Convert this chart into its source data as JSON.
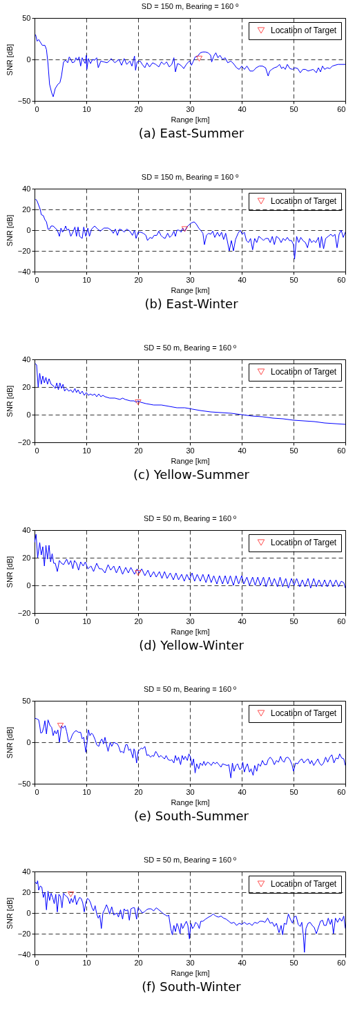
{
  "chart_data": [
    {
      "type": "line",
      "title": "SD = 150 m, Bearing = 160 º",
      "xlabel": "Range [km]",
      "ylabel": "SNR [dB]",
      "xlim": [
        0,
        60
      ],
      "xticks": [
        0,
        10,
        20,
        30,
        40,
        50,
        60
      ],
      "ylim": [
        -50,
        50
      ],
      "yticks": [
        -50,
        0,
        50
      ],
      "grid": true,
      "legend": "top right",
      "annotations": [
        "(a) East-Summer"
      ],
      "series": [
        {
          "type": "line",
          "color": "#0000ff",
          "marker": "none",
          "line_style": "solid",
          "x": [
            0.2,
            0.5,
            0.8,
            1.2,
            1.5,
            2,
            2.3,
            2.6,
            2.9,
            3.3,
            3.6,
            4,
            4.5,
            4.9,
            5.2,
            5.6,
            6,
            6.4,
            6.7,
            7,
            7.3,
            7.7,
            8,
            8.3,
            8.6,
            8.9,
            9.2,
            9.5,
            9.8,
            10,
            10.1,
            10.4,
            10.8,
            11.2,
            11.6,
            12,
            12.3,
            12.8,
            13.4,
            14,
            14.4,
            14.8,
            15.5,
            16.3,
            16.8,
            17.3,
            17.8,
            18.4,
            18.8,
            19.3,
            19.5,
            19.8,
            20.4,
            20.8,
            21.3,
            21.7,
            22.2,
            22.8,
            23.4,
            24,
            24.5,
            25,
            25.5,
            26,
            26.5,
            26.9,
            27.2,
            27.6,
            28,
            28.4,
            28.8,
            29.3,
            29.7,
            30,
            30.3,
            30.6,
            31,
            31.5,
            32,
            32.5,
            33,
            33.5,
            34,
            34.2,
            34.6,
            35,
            35.4,
            35.8,
            36.3,
            36.8,
            37.3,
            37.9,
            38.4,
            39,
            39.5,
            40,
            40.5,
            41,
            41.6,
            42.2,
            42.8,
            43.4,
            44,
            44.6,
            45.1,
            45.4,
            45.8,
            46.3,
            46.8,
            47.3,
            47.7,
            48,
            48.4,
            48.8,
            49.3,
            49.8,
            50.3,
            50.8,
            51.3,
            51.8,
            52.3,
            52.8,
            53.3,
            53.8,
            54.4,
            54.8,
            55.2,
            55.6,
            56,
            56.5,
            57,
            57.5,
            58,
            58.6,
            59.2,
            60
          ],
          "values": [
            30,
            22,
            24,
            20,
            17,
            17,
            12,
            -5,
            -30,
            -40,
            -45,
            -35,
            -30,
            -28,
            -20,
            -3,
            -1,
            -4,
            3,
            0,
            -4,
            -3,
            2,
            -1,
            3,
            -8,
            2,
            -2,
            -5,
            5,
            -12,
            1,
            -5,
            0,
            -1,
            2,
            -10,
            -2,
            -3,
            -4,
            -2,
            1,
            -4,
            0,
            -7,
            1,
            -6,
            -2,
            -8,
            4,
            -13,
            -3,
            -2,
            -6,
            -10,
            -4,
            -9,
            -4,
            -6,
            -9,
            -3,
            -6,
            -3,
            -9,
            -6,
            2,
            -15,
            -5,
            -6,
            -8,
            -11,
            -6,
            -3,
            -2,
            -7,
            -3,
            3,
            4,
            8,
            9,
            9,
            8,
            5,
            -3,
            4,
            8,
            2,
            5,
            0,
            2,
            -4,
            -2,
            -5,
            -10,
            -12,
            -8,
            -12,
            -8,
            -14,
            -14,
            -10,
            -8,
            -8,
            -10,
            -20,
            -14,
            -12,
            -10,
            -9,
            -6,
            -11,
            -9,
            -12,
            -6,
            -11,
            -12,
            -10,
            -11,
            -16,
            -12,
            -12,
            -14,
            -13,
            -12,
            -16,
            -10,
            -15,
            -8,
            -12,
            -10,
            -11,
            -8,
            -7,
            -6,
            -6,
            -6
          ]
        },
        {
          "type": "scatter",
          "name": "Location of Target",
          "color": "#ff0000",
          "marker": "triangle",
          "x": [
            31.8
          ],
          "values": [
            1
          ]
        }
      ]
    },
    {
      "type": "line",
      "title": "SD = 150 m, Bearing = 160 º",
      "xlabel": "Range [km]",
      "ylabel": "SNR [dB]",
      "xlim": [
        0,
        60
      ],
      "xticks": [
        0,
        10,
        20,
        30,
        40,
        50,
        60
      ],
      "ylim": [
        -40,
        40
      ],
      "yticks": [
        -40,
        -20,
        0,
        20,
        40
      ],
      "grid": true,
      "legend": "top right",
      "annotations": [
        "(b) East-Winter"
      ],
      "series": [
        {
          "type": "line",
          "color": "#0000ff",
          "marker": "none",
          "line_style": "solid",
          "x": [
            0.2,
            0.5,
            0.8,
            1.1,
            1.3,
            1.7,
            2,
            2.3,
            2.6,
            2.9,
            3.2,
            3.6,
            4,
            4.4,
            4.8,
            5.1,
            5.4,
            5.8,
            6,
            6.3,
            6.6,
            7,
            7.4,
            7.8,
            8.1,
            8.4,
            8.7,
            9.2,
            9.5,
            9.9,
            10.3,
            10.6,
            11,
            11.6,
            12.2,
            12.7,
            13.4,
            14.2,
            14.8,
            15.2,
            15.6,
            16,
            16.4,
            16.9,
            17.3,
            17.8,
            18.4,
            18.9,
            19.3,
            19.6,
            20,
            20.5,
            21,
            21.5,
            21.8,
            22.3,
            22.7,
            23.1,
            23.6,
            24,
            24.4,
            24.8,
            25.2,
            25.7,
            26.1,
            26.5,
            26.9,
            27.2,
            27.5,
            27.9,
            28.3,
            28.6,
            29,
            29.4,
            29.8,
            30.3,
            30.8,
            31.2,
            31.7,
            32.2,
            32.5,
            32.8,
            33.2,
            33.6,
            34,
            34.4,
            34.8,
            35.3,
            35.7,
            36.1,
            36.5,
            36.9,
            37.2,
            37.6,
            38,
            38.4,
            38.8,
            39.3,
            39.7,
            40.1,
            40.5,
            40.9,
            41.3,
            41.7,
            42.1,
            42.5,
            42.9,
            43.3,
            43.8,
            44.2,
            44.6,
            45.1,
            45.5,
            45.9,
            46.3,
            46.7,
            47.2,
            47.6,
            48,
            48.4,
            48.8,
            49.2,
            49.6,
            50,
            50.2,
            50.6,
            51,
            51.4,
            51.8,
            52.3,
            52.7,
            53.1,
            53.5,
            53.9,
            54.3,
            54.8,
            55.1,
            55.4,
            55.8,
            56.2,
            56.7,
            57.2,
            57.6,
            58,
            58.4,
            58.8,
            59.2,
            59.6,
            60
          ],
          "values": [
            30,
            28,
            24,
            20,
            15,
            14,
            10,
            8,
            1,
            1,
            4,
            4,
            2,
            0,
            -6,
            2,
            -2,
            1,
            4,
            0,
            1,
            -6,
            -2,
            3,
            -6,
            3,
            -6,
            -8,
            3,
            -6,
            2,
            -6,
            1,
            4,
            1,
            -1,
            2,
            2,
            0,
            -3,
            1,
            -5,
            1,
            0,
            -2,
            1,
            -1,
            -5,
            0,
            -8,
            -2,
            -2,
            -3,
            -5,
            -10,
            -7,
            -8,
            -5,
            -5,
            -1,
            -5,
            -7,
            -8,
            -3,
            -7,
            -5,
            -1,
            -6,
            0,
            0,
            -2,
            2,
            -1,
            3,
            5,
            7,
            8,
            6,
            2,
            -1,
            -3,
            -14,
            -5,
            -3,
            -4,
            -1,
            -7,
            -2,
            -6,
            -2,
            -9,
            -3,
            -10,
            -20,
            -10,
            -20,
            -9,
            -3,
            0,
            -4,
            -2,
            -10,
            -12,
            -8,
            -19,
            -8,
            -12,
            -6,
            -8,
            -10,
            -8,
            -8,
            -12,
            -6,
            -14,
            -6,
            -8,
            -12,
            -8,
            -10,
            -7,
            -10,
            -10,
            -14,
            -28,
            -6,
            -12,
            -7,
            -10,
            -12,
            -17,
            -8,
            -12,
            -10,
            -12,
            -7,
            -17,
            -6,
            -18,
            -8,
            -6,
            -4,
            -6,
            -4,
            -17,
            -4,
            0,
            -7,
            -2
          ]
        },
        {
          "type": "scatter",
          "name": "Location of Target",
          "color": "#ff0000",
          "marker": "triangle",
          "x": [
            29
          ],
          "values": [
            1
          ]
        }
      ]
    },
    {
      "type": "line",
      "title": "SD = 50 m, Bearing = 160 º",
      "xlabel": "Range [km]",
      "ylabel": "SNR [dB]",
      "xlim": [
        0,
        60
      ],
      "xticks": [
        0,
        10,
        20,
        30,
        40,
        50,
        60
      ],
      "ylim": [
        -20,
        40
      ],
      "yticks": [
        -20,
        0,
        20,
        40
      ],
      "grid": true,
      "legend": "top right",
      "annotations": [
        "(c) Yellow-Summer"
      ],
      "series": [
        {
          "type": "line",
          "color": "#0000ff",
          "marker": "none",
          "line_style": "solid",
          "x": [
            0.1,
            0.4,
            0.7,
            1,
            1.3,
            1.6,
            1.9,
            2.2,
            2.5,
            2.8,
            3.2,
            3.6,
            4,
            4.3,
            4.6,
            4.9,
            5.2,
            5.5,
            5.8,
            6.2,
            6.6,
            7,
            7.4,
            7.8,
            8.1,
            8.4,
            8.8,
            9.2,
            9.6,
            10,
            10.4,
            10.8,
            11.2,
            11.6,
            12,
            12.4,
            12.8,
            13.2,
            13.6,
            14.5,
            15.5,
            16.5,
            17,
            17.5,
            18.5,
            19.2,
            19.6,
            20,
            20.5,
            21.5,
            23,
            24.5,
            26,
            27.5,
            29,
            30.5,
            32,
            34,
            36,
            38,
            40,
            42,
            44,
            46,
            48,
            50,
            52,
            54,
            56,
            58,
            60
          ],
          "values": [
            37,
            36,
            20,
            30,
            22,
            28,
            23,
            27,
            22,
            26,
            22,
            21,
            19,
            23,
            18,
            23,
            19,
            22,
            17,
            19,
            17,
            18,
            16,
            19,
            16,
            18,
            15,
            17,
            14,
            16,
            14,
            15,
            14,
            15,
            13,
            15,
            13,
            14,
            13,
            12,
            12,
            11,
            12,
            11,
            10,
            10,
            9,
            10,
            9,
            8,
            7,
            7,
            6,
            5,
            5,
            4,
            3,
            2,
            1.5,
            1,
            0,
            -1,
            -1.5,
            -2.5,
            -3,
            -4,
            -4.5,
            -5,
            -6,
            -6.5,
            -7
          ]
        },
        {
          "type": "scatter",
          "name": "Location of Target",
          "color": "#ff0000",
          "marker": "triangle",
          "x": [
            20
          ],
          "values": [
            9
          ]
        }
      ]
    },
    {
      "type": "line",
      "title": "SD = 50 m, Bearing = 160 º",
      "xlabel": "Range [km]",
      "ylabel": "SNR [dB]",
      "xlim": [
        0,
        60
      ],
      "xticks": [
        0,
        10,
        20,
        30,
        40,
        50,
        60
      ],
      "ylim": [
        -20,
        40
      ],
      "yticks": [
        -20,
        0,
        20,
        40
      ],
      "grid": true,
      "legend": "top right",
      "annotations": [
        "(d) Yellow-Winter"
      ],
      "series": [
        {
          "type": "line",
          "color": "#0000ff",
          "marker": "none",
          "line_style": "solid",
          "x": [
            0,
            0.3,
            0.6,
            1,
            1.3,
            1.6,
            1.9,
            2.2,
            2.5,
            2.8,
            3.1,
            3.4,
            3.7,
            4,
            4.4,
            4.8,
            5.2,
            5.6,
            6.2,
            6.6,
            7,
            7.4,
            7.7,
            8.1,
            8.5,
            8.9,
            9.4,
            9.8,
            10.3,
            10.9,
            11.4,
            12,
            12.5,
            13,
            13.6,
            14.2,
            14.7,
            15.3,
            15.8,
            16.4,
            17,
            17.6,
            18.1,
            18.6,
            19.3,
            19.8,
            20.2,
            20.7,
            21.3,
            21.9,
            22.4,
            23,
            23.5,
            24.1,
            24.6,
            25.1,
            25.6,
            26.2,
            26.8,
            27.3,
            27.8,
            28.4,
            28.9,
            29.4,
            29.9,
            30.4,
            30.9,
            31.4,
            32,
            32.5,
            33.1,
            33.6,
            34.1,
            34.6,
            35.2,
            35.7,
            36.3,
            36.8,
            37.3,
            37.8,
            38.4,
            38.9,
            39.4,
            40,
            40.4,
            41,
            41.5,
            42.1,
            42.6,
            43.1,
            43.6,
            44.2,
            44.7,
            45.3,
            45.8,
            46.3,
            46.9,
            47.4,
            47.9,
            48.5,
            49,
            49.6,
            50.1,
            50.6,
            51.2,
            51.7,
            52.2,
            52.8,
            53.3,
            53.9,
            54.4,
            54.9,
            55.5,
            56,
            56.5,
            57.1,
            57.6,
            58.2,
            58.7,
            59.2,
            59.7,
            60
          ],
          "values": [
            31,
            37,
            20,
            31,
            22,
            28,
            14,
            29,
            19,
            29,
            17,
            23,
            16,
            16,
            10,
            18,
            16,
            15,
            19,
            15,
            18,
            12,
            18,
            16,
            11,
            17,
            14,
            17,
            12,
            14,
            10,
            16,
            12,
            12,
            9,
            15,
            11,
            14,
            9,
            14,
            8,
            13,
            9,
            13,
            8,
            12,
            9,
            12,
            7,
            11,
            6,
            10,
            6,
            10,
            5,
            10,
            5,
            9,
            4,
            9,
            4,
            8,
            3,
            8,
            4,
            9,
            3,
            8,
            3,
            8,
            2,
            8,
            2,
            7,
            1,
            7,
            1,
            7,
            1,
            7,
            0,
            7,
            1,
            7,
            1,
            6,
            0,
            6,
            0,
            6,
            0,
            6,
            -1,
            6,
            0,
            5,
            -1,
            6,
            -1,
            5,
            -2,
            5,
            0,
            5,
            -1,
            4,
            -1,
            5,
            -2,
            5,
            -1,
            4,
            -1,
            4,
            -1,
            4,
            -1,
            4,
            -1,
            3,
            2,
            -2
          ]
        },
        {
          "type": "scatter",
          "name": "Location of Target",
          "color": "#ff0000",
          "marker": "triangle",
          "x": [
            20
          ],
          "values": [
            9
          ]
        }
      ]
    },
    {
      "type": "line",
      "title": "SD = 50 m, Bearing = 160 º",
      "xlabel": "Range [km]",
      "ylabel": "SNR [dB]",
      "xlim": [
        0,
        60
      ],
      "xticks": [
        0,
        10,
        20,
        30,
        40,
        50,
        60
      ],
      "ylim": [
        -50,
        50
      ],
      "yticks": [
        -50,
        0,
        50
      ],
      "grid": true,
      "legend": "top right",
      "annotations": [
        "(e) South-Summer"
      ],
      "series": [
        {
          "type": "line",
          "color": "#0000ff",
          "marker": "none",
          "line_style": "solid",
          "x": [
            0.1,
            0.5,
            0.8,
            1,
            1.2,
            1.5,
            1.8,
            2,
            2.3,
            2.6,
            3,
            3.3,
            3.6,
            3.9,
            4.2,
            4.5,
            4.8,
            5.2,
            5.5,
            5.9,
            6.2,
            6.6,
            7,
            7.3,
            7.6,
            8,
            8.5,
            8.9,
            9.2,
            9.5,
            9.9,
            10.2,
            10.4,
            10.7,
            11,
            11.3,
            11.7,
            12,
            12.4,
            12.7,
            13,
            13.3,
            13.6,
            13.9,
            14.2,
            14.6,
            14.9,
            15.3,
            15.6,
            16,
            16.3,
            16.6,
            16.9,
            17.2,
            17.6,
            17.9,
            18.2,
            18.5,
            19,
            19.2,
            19.4,
            19.7,
            20,
            20.3,
            20.6,
            20.9,
            21.3,
            21.7,
            22,
            22.4,
            22.7,
            23,
            23.4,
            23.7,
            24,
            24.4,
            24.7,
            25.1,
            25.4,
            25.8,
            26.2,
            26.5,
            26.9,
            27.2,
            27.5,
            27.8,
            28.2,
            28.5,
            28.8,
            29.1,
            29.5,
            29.8,
            30.1,
            30.4,
            30.7,
            31,
            31.3,
            31.7,
            32,
            32.4,
            32.7,
            33,
            33.4,
            33.7,
            34.1,
            34.5,
            34.9,
            35.2,
            35.6,
            36,
            36.3,
            36.7,
            37.2,
            37.5,
            37.9,
            38.2,
            38.5,
            38.9,
            39.2,
            39.6,
            40,
            40.2,
            40.5,
            40.8,
            41.1,
            41.5,
            41.8,
            42.2,
            42.5,
            42.9,
            43.2,
            43.6,
            44,
            44.4,
            44.8,
            45.1,
            45.5,
            45.9,
            46.3,
            46.7,
            47.1,
            47.5,
            47.8,
            48.2,
            48.5,
            48.9,
            49.3,
            49.7,
            50,
            50.4,
            50.8,
            51.2,
            51.6,
            52,
            52.4,
            52.8,
            53.2,
            53.5,
            53.9,
            54.3,
            54.7,
            55,
            55.4,
            55.8,
            56.2,
            56.6,
            57,
            57.4,
            57.8,
            58.2,
            58.6,
            58.9,
            59.3,
            59.7,
            60
          ],
          "values": [
            29,
            28,
            27,
            20,
            11,
            12,
            19,
            26,
            10,
            27,
            20,
            18,
            8,
            14,
            10,
            15,
            0,
            20,
            17,
            20,
            13,
            0,
            4,
            9,
            12,
            14,
            12,
            12,
            4,
            6,
            -12,
            3,
            15,
            8,
            11,
            9,
            3,
            -3,
            -5,
            1,
            4,
            -2,
            6,
            -3,
            -11,
            0,
            -5,
            0,
            -1,
            -2,
            -6,
            -12,
            -11,
            -13,
            -3,
            -3,
            -10,
            -8,
            -19,
            -8,
            -11,
            -25,
            -11,
            -9,
            -7,
            -8,
            -5,
            -16,
            -15,
            -18,
            -16,
            -17,
            -11,
            -14,
            -18,
            -16,
            -18,
            -20,
            -16,
            -21,
            -22,
            -21,
            -25,
            -16,
            -22,
            -18,
            -27,
            -16,
            -21,
            -17,
            -22,
            -14,
            -18,
            -28,
            -20,
            -37,
            -26,
            -32,
            -25,
            -28,
            -23,
            -28,
            -24,
            -25,
            -28,
            -24,
            -26,
            -24,
            -27,
            -30,
            -26,
            -27,
            -28,
            -27,
            -43,
            -25,
            -35,
            -28,
            -26,
            -33,
            -31,
            -24,
            -36,
            -30,
            -26,
            -36,
            -32,
            -40,
            -28,
            -35,
            -26,
            -29,
            -22,
            -27,
            -27,
            -21,
            -18,
            -21,
            -27,
            -22,
            -24,
            -17,
            -22,
            -24,
            -19,
            -18,
            -21,
            -27,
            -35,
            -25,
            -26,
            -22,
            -20,
            -25,
            -22,
            -20,
            -26,
            -22,
            -28,
            -24,
            -20,
            -25,
            -28,
            -25,
            -18,
            -24,
            -18,
            -15,
            -25,
            -19,
            -20,
            -14,
            -19,
            -20,
            -28
          ]
        },
        {
          "type": "scatter",
          "name": "Location of Target",
          "color": "#ff0000",
          "marker": "triangle",
          "x": [
            5
          ],
          "values": [
            20
          ]
        }
      ]
    },
    {
      "type": "line",
      "title": "SD = 50 m, Bearing = 160 º",
      "xlabel": "Range [km]",
      "ylabel": "SNR [dB]",
      "xlim": [
        0,
        60
      ],
      "xticks": [
        0,
        10,
        20,
        30,
        40,
        50,
        60
      ],
      "ylim": [
        -40,
        40
      ],
      "yticks": [
        -40,
        -20,
        0,
        20,
        40
      ],
      "grid": true,
      "legend": "top right",
      "annotations": [
        "(f) South-Winter"
      ],
      "series": [
        {
          "type": "line",
          "color": "#0000ff",
          "marker": "none",
          "line_style": "solid",
          "x": [
            0.1,
            0.4,
            0.6,
            0.8,
            1.1,
            1.4,
            1.7,
            2,
            2.3,
            2.6,
            2.9,
            3.2,
            3.5,
            3.8,
            4.1,
            4.4,
            4.7,
            5,
            5.3,
            5.6,
            5.9,
            6.2,
            6.5,
            6.8,
            7.1,
            7.4,
            7.8,
            8.1,
            8.4,
            8.7,
            9,
            9.3,
            9.6,
            9.9,
            10.2,
            10.5,
            10.8,
            11.1,
            11.4,
            11.7,
            12,
            12.3,
            12.6,
            12.9,
            13.2,
            13.5,
            13.9,
            14.2,
            14.5,
            14.9,
            15.3,
            15.6,
            15.9,
            16.2,
            16.6,
            17,
            17.3,
            17.6,
            18,
            18.3,
            18.6,
            19,
            19.3,
            19.7,
            20,
            20.4,
            20.8,
            21.2,
            21.6,
            22,
            22.5,
            23,
            23.5,
            24,
            24.5,
            24.9,
            25.3,
            25.6,
            25.9,
            26.3,
            26.6,
            26.9,
            27.2,
            27.5,
            27.8,
            28.1,
            28.3,
            28.6,
            28.9,
            29.3,
            29.6,
            29.9,
            30.2,
            30.5,
            30.8,
            31.1,
            31.5,
            31.8,
            32.1,
            32.5,
            33,
            33.6,
            34,
            34.5,
            35,
            35.5,
            36,
            36.5,
            37,
            37.5,
            38,
            38.5,
            39,
            39.5,
            40,
            40.5,
            41,
            41.5,
            42,
            42.5,
            43,
            43.5,
            44,
            44.5,
            45,
            45.5,
            45.9,
            46.3,
            46.7,
            47.2,
            47.6,
            47.9,
            48.2,
            48.6,
            49,
            49.4,
            49.8,
            50.1,
            50.5,
            50.9,
            51.3,
            51.6,
            51.9,
            52.1,
            52.4,
            52.8,
            53.2,
            53.6,
            54,
            54.4,
            54.8,
            55.2,
            55.6,
            55.9,
            56.3,
            56.7,
            57.1,
            57.4,
            57.7,
            58.1,
            58.5,
            58.9,
            59.3,
            59.7,
            60
          ],
          "values": [
            30,
            28,
            31,
            22,
            26,
            25,
            15,
            20,
            3,
            21,
            12,
            19,
            15,
            9,
            18,
            1,
            18,
            16,
            5,
            19,
            17,
            16,
            14,
            9,
            14,
            10,
            17,
            8,
            12,
            15,
            14,
            10,
            1,
            10,
            14,
            13,
            10,
            5,
            2,
            7,
            -1,
            -5,
            -2,
            -15,
            0,
            3,
            8,
            4,
            -1,
            6,
            -2,
            -1,
            0,
            -4,
            3,
            -6,
            4,
            2,
            3,
            -7,
            4,
            5,
            5,
            -6,
            5,
            3,
            0,
            1,
            3,
            4,
            4,
            2,
            5,
            3,
            1,
            -1,
            -2,
            -3,
            -2,
            -15,
            -21,
            -12,
            -18,
            -10,
            -14,
            -20,
            -10,
            -15,
            -12,
            -8,
            -12,
            -25,
            -10,
            -15,
            -13,
            -9,
            -11,
            -15,
            -8,
            -8,
            -6,
            -4,
            -3,
            -1,
            -3,
            -4,
            -3,
            -5,
            -6,
            -8,
            -10,
            -9,
            -12,
            -10,
            -11,
            -9,
            -11,
            -10,
            -12,
            -9,
            -10,
            -8,
            -8,
            -9,
            -5,
            -10,
            -9,
            -13,
            -10,
            -19,
            -12,
            -21,
            -10,
            -11,
            -1,
            -6,
            -10,
            -4,
            -3,
            -11,
            -13,
            -9,
            -22,
            -38,
            -15,
            -10,
            -9,
            -12,
            -14,
            -20,
            -14,
            -8,
            -7,
            -12,
            -12,
            -5,
            -11,
            -6,
            -20,
            -5,
            -9,
            -5,
            -8,
            -3,
            -15
          ]
        },
        {
          "type": "scatter",
          "name": "Location of Target",
          "color": "#ff0000",
          "marker": "triangle",
          "x": [
            7
          ],
          "values": [
            18
          ]
        }
      ]
    }
  ]
}
